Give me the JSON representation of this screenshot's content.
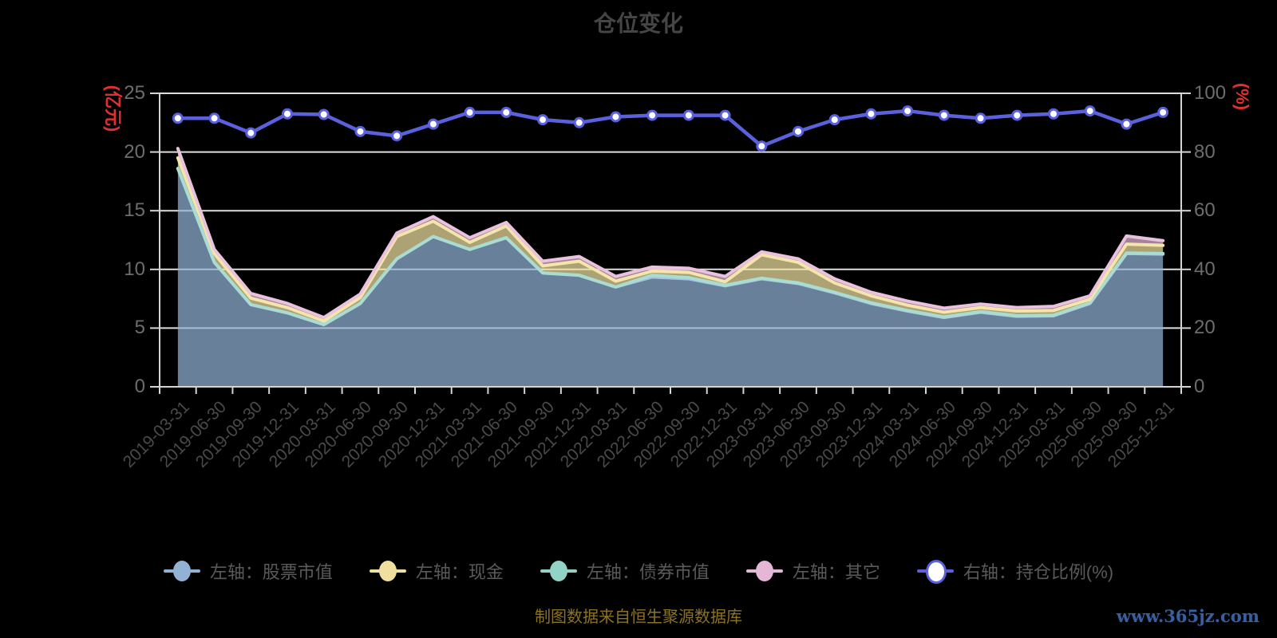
{
  "title": "仓位变化",
  "axis_left": {
    "name": "(亿元)",
    "name_color": "#e03131",
    "tick_labels": [
      "0",
      "5",
      "10",
      "15",
      "20",
      "25"
    ]
  },
  "axis_right": {
    "name": "(%)",
    "name_color": "#e03131",
    "tick_labels": [
      "0",
      "20",
      "40",
      "60",
      "80",
      "100"
    ]
  },
  "legend": {
    "items": [
      {
        "label": "左轴：股票市值",
        "color": "#92b1d5",
        "style": "area"
      },
      {
        "label": "左轴：现金",
        "color": "#f0e0a0",
        "style": "area"
      },
      {
        "label": "左轴：债券市值",
        "color": "#93d2c7",
        "style": "area"
      },
      {
        "label": "左轴：其它",
        "color": "#e4b7d7",
        "style": "area"
      },
      {
        "label": "右轴：持仓比例(%)",
        "color": "#5b61dd",
        "style": "line-dot"
      }
    ]
  },
  "chart_data": {
    "type": "area",
    "stacked": true,
    "title": "仓位变化",
    "grid": true,
    "legend_position": "bottom",
    "categories": [
      "2019-03-31",
      "2019-06-30",
      "2019-09-30",
      "2019-12-31",
      "2020-03-31",
      "2020-06-30",
      "2020-09-30",
      "2020-12-31",
      "2021-03-31",
      "2021-06-30",
      "2021-09-30",
      "2021-12-31",
      "2022-03-31",
      "2022-06-30",
      "2022-09-30",
      "2022-12-31",
      "2023-03-31",
      "2023-06-30",
      "2023-09-30",
      "2023-12-31",
      "2024-03-31",
      "2024-06-30",
      "2024-09-30",
      "2024-12-31",
      "2025-03-31",
      "2025-06-30",
      "2025-09-30",
      "2025-12-31"
    ],
    "y_left": {
      "label": "(亿元)",
      "range": [
        0,
        25
      ],
      "ticks": [
        0,
        5,
        10,
        15,
        20,
        25
      ]
    },
    "y_right": {
      "label": "(%)",
      "range": [
        0,
        100
      ],
      "ticks": [
        0,
        20,
        40,
        60,
        80,
        100
      ]
    },
    "series": [
      {
        "name": "左轴：股票市值",
        "type": "area",
        "axis": "left",
        "color": "#92b1d5",
        "fill": "rgba(146,177,213,0.72)",
        "stroke": "#a8c2e6",
        "values": [
          18.6,
          10.6,
          7.0,
          6.3,
          5.3,
          7.1,
          10.9,
          12.8,
          11.7,
          12.7,
          9.7,
          9.5,
          8.5,
          9.35,
          9.2,
          8.6,
          9.2,
          8.8,
          8.0,
          7.1,
          6.45,
          5.9,
          6.35,
          6.0,
          6.05,
          7.1,
          11.35,
          11.3
        ]
      },
      {
        "name": "左轴：债券市值",
        "type": "area",
        "axis": "left",
        "color": "#93d2c7",
        "fill": "rgba(147,210,199,0.72)",
        "stroke": "#a9dcd2",
        "values": [
          0,
          0,
          0,
          0,
          0,
          0,
          0,
          0,
          0,
          0,
          0,
          0,
          0,
          0.15,
          0.1,
          0.05,
          0.05,
          0.05,
          0.05,
          0.05,
          0.05,
          0.05,
          0.05,
          0.05,
          0.05,
          0.05,
          0.05,
          0.05
        ]
      },
      {
        "name": "左轴：现金",
        "type": "area",
        "axis": "left",
        "color": "#f0e0a0",
        "fill": "rgba(240,224,160,0.72)",
        "stroke": "#f4e6aa",
        "values": [
          0.9,
          0.75,
          0.55,
          0.45,
          0.3,
          0.5,
          1.9,
          1.3,
          0.6,
          1.0,
          0.6,
          1.2,
          0.5,
          0.35,
          0.45,
          0.3,
          2.0,
          1.75,
          0.8,
          0.6,
          0.45,
          0.4,
          0.35,
          0.4,
          0.4,
          0.3,
          0.75,
          0.7
        ]
      },
      {
        "name": "左轴：其它",
        "type": "area",
        "axis": "left",
        "color": "#e4b7d7",
        "fill": "rgba(228,183,215,0.72)",
        "stroke": "#eac2dd",
        "values": [
          0.8,
          0.35,
          0.4,
          0.35,
          0.3,
          0.3,
          0.3,
          0.4,
          0.4,
          0.3,
          0.4,
          0.4,
          0.4,
          0.35,
          0.35,
          0.45,
          0.25,
          0.3,
          0.35,
          0.3,
          0.35,
          0.35,
          0.3,
          0.3,
          0.35,
          0.3,
          0.7,
          0.4
        ]
      },
      {
        "name": "右轴：持仓比例(%)",
        "type": "line",
        "axis": "right",
        "color": "#5b61dd",
        "dot_fill": "#ffffff",
        "values": [
          91.5,
          91.5,
          86.5,
          93,
          92.8,
          87,
          85.5,
          89.5,
          93.5,
          93.5,
          91,
          90,
          92,
          92.5,
          92.5,
          92.5,
          82,
          87,
          91,
          93,
          94,
          92.5,
          91.5,
          92.5,
          93,
          94,
          89.5,
          93.5
        ]
      }
    ]
  },
  "footer": {
    "source_note": "制图数据来自恒生聚源数据库",
    "watermark": "www.365jz.com"
  }
}
